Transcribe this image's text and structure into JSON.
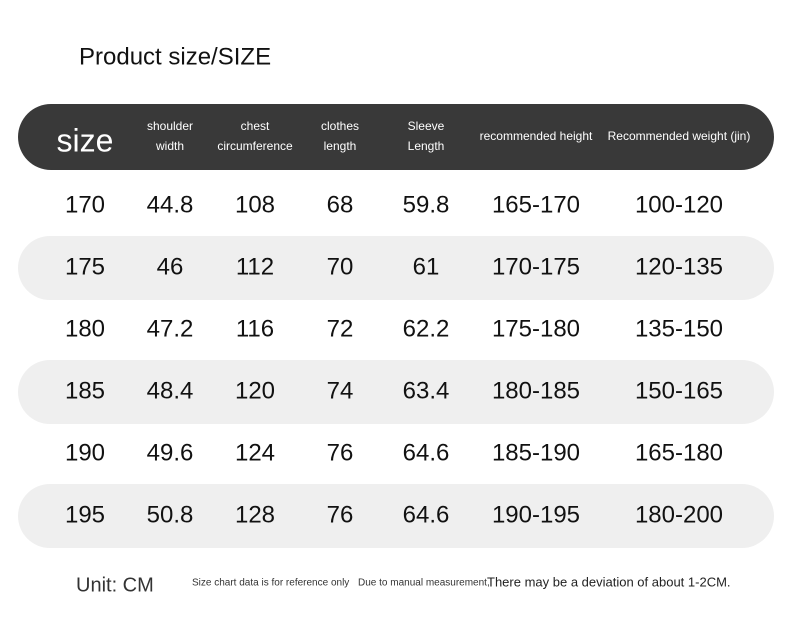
{
  "title": "Product size/SIZE",
  "table": {
    "headers": [
      [
        "size"
      ],
      [
        "shoulder",
        "width"
      ],
      [
        "chest",
        "circumference"
      ],
      [
        "clothes",
        "length"
      ],
      [
        "Sleeve",
        "Length"
      ],
      [
        "recommended height"
      ],
      [
        "Recommended weight (jin)"
      ]
    ],
    "rows": [
      [
        170,
        44.8,
        108,
        68,
        59.8,
        "165-170",
        "100-120"
      ],
      [
        175,
        46,
        112,
        70,
        61,
        "170-175",
        "120-135"
      ],
      [
        180,
        47.2,
        116,
        72,
        62.2,
        "175-180",
        "135-150"
      ],
      [
        185,
        48.4,
        120,
        74,
        63.4,
        "180-185",
        "150-165"
      ],
      [
        190,
        49.6,
        124,
        76,
        64.6,
        "185-190",
        "165-180"
      ],
      [
        195,
        50.8,
        128,
        76,
        64.6,
        "190-195",
        "180-200"
      ]
    ]
  },
  "footer": {
    "unit": "Unit: CM",
    "note1": "Size chart data is for reference only",
    "note2": "Due to manual measurement,",
    "note3": "There may be a deviation of about 1-2CM."
  }
}
